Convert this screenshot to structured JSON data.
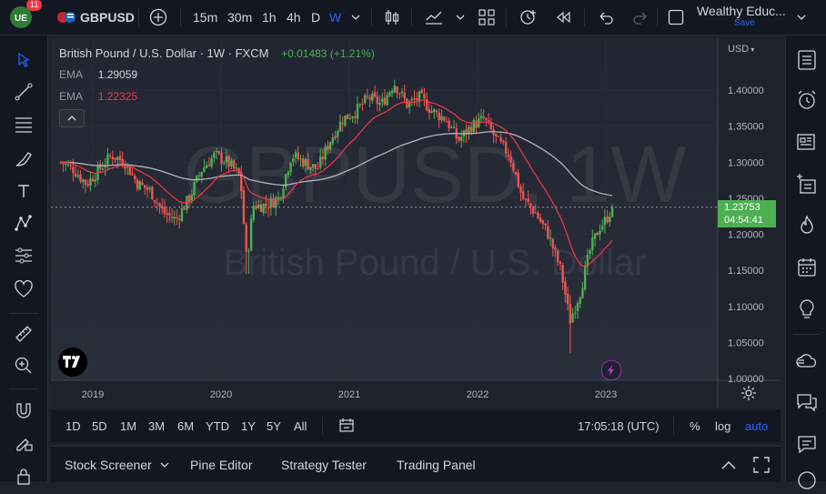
{
  "topbar": {
    "notification_count": "11",
    "symbol": "GBPUSD",
    "intervals": [
      "15m",
      "30m",
      "1h",
      "4h",
      "D",
      "W"
    ],
    "active_interval": "W",
    "layout_name": "Wealthy Educ...",
    "save_label": "Save"
  },
  "legend": {
    "title": "British Pound / U.S. Dollar · 1W · FXCM",
    "change": "+0.01483 (+1.21%)",
    "ema1_label": "EMA",
    "ema1_value": "1.29059",
    "ema2_label": "EMA",
    "ema2_value": "1.22325"
  },
  "watermark": {
    "symbol": "GBPUSD, 1W",
    "name": "British Pound / U.S. Dollar"
  },
  "price_axis": {
    "currency": "USD",
    "ticks": [
      "1.40000",
      "1.35000",
      "1.30000",
      "1.25000",
      "1.20000",
      "1.15000",
      "1.10000",
      "1.05000",
      "1.00000"
    ],
    "last_price": "1.23753",
    "countdown": "04:54:41"
  },
  "time_axis": {
    "ticks": [
      "2019",
      "2020",
      "2021",
      "2022",
      "2023"
    ]
  },
  "bottombar": {
    "ranges": [
      "1D",
      "5D",
      "1M",
      "3M",
      "6M",
      "YTD",
      "1Y",
      "5Y",
      "All"
    ],
    "clock": "17:05:18 (UTC)",
    "percent": "%",
    "log": "log",
    "auto": "auto"
  },
  "panels": {
    "items": [
      "Stock Screener",
      "Pine Editor",
      "Strategy Tester",
      "Trading Panel"
    ]
  },
  "colors": {
    "up": "#26a69a",
    "up_bright": "#4caf50",
    "down": "#ef5350",
    "ema_fast": "#f23645",
    "ema_slow": "#b2b5be",
    "accent": "#2962ff",
    "last_price_bg": "#4caf50"
  },
  "chart_data": {
    "type": "candlestick",
    "title": "British Pound / U.S. Dollar · 1W · FXCM",
    "x_ticks": [
      "2019",
      "2020",
      "2021",
      "2022",
      "2023"
    ],
    "ylim": [
      1.0,
      1.42
    ],
    "last_price": 1.23753,
    "series": [
      {
        "name": "EMA",
        "value": 1.29059
      },
      {
        "name": "EMA",
        "value": 1.22325
      }
    ],
    "close_path": [
      [
        2018.75,
        1.3
      ],
      [
        2018.85,
        1.29
      ],
      [
        2018.95,
        1.27
      ],
      [
        2019.05,
        1.29
      ],
      [
        2019.15,
        1.31
      ],
      [
        2019.25,
        1.3
      ],
      [
        2019.35,
        1.27
      ],
      [
        2019.45,
        1.26
      ],
      [
        2019.55,
        1.23
      ],
      [
        2019.65,
        1.22
      ],
      [
        2019.75,
        1.25
      ],
      [
        2019.85,
        1.29
      ],
      [
        2019.95,
        1.31
      ],
      [
        2020.05,
        1.3
      ],
      [
        2020.15,
        1.28
      ],
      [
        2020.2,
        1.16
      ],
      [
        2020.25,
        1.24
      ],
      [
        2020.35,
        1.24
      ],
      [
        2020.45,
        1.25
      ],
      [
        2020.55,
        1.31
      ],
      [
        2020.65,
        1.3
      ],
      [
        2020.75,
        1.29
      ],
      [
        2020.85,
        1.33
      ],
      [
        2020.95,
        1.36
      ],
      [
        2021.05,
        1.37
      ],
      [
        2021.15,
        1.39
      ],
      [
        2021.25,
        1.38
      ],
      [
        2021.35,
        1.41
      ],
      [
        2021.45,
        1.38
      ],
      [
        2021.55,
        1.39
      ],
      [
        2021.65,
        1.37
      ],
      [
        2021.75,
        1.36
      ],
      [
        2021.85,
        1.33
      ],
      [
        2021.95,
        1.35
      ],
      [
        2022.05,
        1.36
      ],
      [
        2022.15,
        1.33
      ],
      [
        2022.25,
        1.31
      ],
      [
        2022.35,
        1.25
      ],
      [
        2022.45,
        1.23
      ],
      [
        2022.55,
        1.2
      ],
      [
        2022.65,
        1.15
      ],
      [
        2022.72,
        1.08
      ],
      [
        2022.8,
        1.12
      ],
      [
        2022.88,
        1.18
      ],
      [
        2022.95,
        1.21
      ],
      [
        2023.0,
        1.22
      ],
      [
        2023.05,
        1.2375
      ]
    ]
  }
}
